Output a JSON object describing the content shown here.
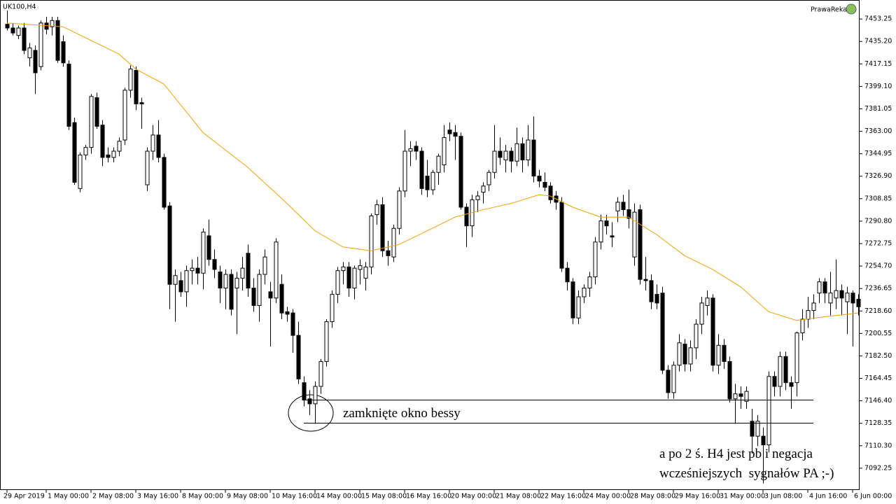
{
  "chart_data": {
    "type": "candlestick",
    "title": "UK100,H4",
    "brand": "PrawaReka",
    "ylim": [
      7074.75,
      7468.5
    ],
    "yticks": [
      {
        "value": 7453.25,
        "label": "7453.25"
      },
      {
        "value": 7435.2,
        "label": "7435.20"
      },
      {
        "value": 7417.15,
        "label": "7417.15"
      },
      {
        "value": 7399.1,
        "label": "7399.10"
      },
      {
        "value": 7381.05,
        "label": "7381.05"
      },
      {
        "value": 7363,
        "label": "7363.00"
      },
      {
        "value": 7344.95,
        "label": "7344.95"
      },
      {
        "value": 7326.9,
        "label": "7326.90"
      },
      {
        "value": 7308.85,
        "label": "7308.85"
      },
      {
        "value": 7290.8,
        "label": "7290.80"
      },
      {
        "value": 7272.75,
        "label": "7272.75"
      },
      {
        "value": 7254.7,
        "label": "7254.70"
      },
      {
        "value": 7236.65,
        "label": "7236.65"
      },
      {
        "value": 7218.6,
        "label": "7218.60"
      },
      {
        "value": 7200.55,
        "label": "7200.55"
      },
      {
        "value": 7182.5,
        "label": "7182.50"
      },
      {
        "value": 7164.45,
        "label": "7164.45"
      },
      {
        "value": 7146.4,
        "label": "7146.40"
      },
      {
        "value": 7128.35,
        "label": "7128.35"
      },
      {
        "value": 7110.3,
        "label": "7110.30"
      },
      {
        "value": 7092.25,
        "label": "7092.25"
      }
    ],
    "categories": [
      "29 Apr 2019",
      null,
      null,
      null,
      null,
      null,
      null,
      "1 May 00:00",
      null,
      null,
      null,
      null,
      null,
      null,
      null,
      "2 May 08:00",
      null,
      null,
      null,
      null,
      null,
      null,
      null,
      "3 May 16:00",
      null,
      null,
      null,
      null,
      null,
      null,
      null,
      "8 May 00:00",
      null,
      null,
      null,
      null,
      null,
      null,
      null,
      "9 May 08:00",
      null,
      null,
      null,
      null,
      null,
      null,
      null,
      "10 May 16:00",
      null,
      null,
      null,
      null,
      null,
      null,
      null,
      "14 May 00:00",
      null,
      null,
      null,
      null,
      null,
      null,
      null,
      "15 May 08:00",
      null,
      null,
      null,
      null,
      null,
      null,
      null,
      "16 May 16:00",
      null,
      null,
      null,
      null,
      null,
      null,
      null,
      "20 May 00:00",
      null,
      null,
      null,
      null,
      null,
      null,
      null,
      "21 May 08:00",
      null,
      null,
      null,
      null,
      null,
      null,
      null,
      "22 May 16:00",
      null,
      null,
      null,
      null,
      null,
      null,
      null,
      "24 May 00:00",
      null,
      null,
      null,
      null,
      null,
      null,
      null,
      "28 May 08:00",
      null,
      null,
      null,
      null,
      null,
      null,
      null,
      "29 May 16:00",
      null,
      null,
      null,
      null,
      null,
      null,
      null,
      "31 May 00:00",
      null,
      null,
      null,
      null,
      null,
      null,
      null,
      "3 Jun 08:00",
      null,
      null,
      null,
      null,
      null,
      null,
      null,
      "4 Jun 16:00",
      null,
      null,
      null,
      null,
      null,
      null,
      null,
      "6 Jun 00:00",
      null
    ],
    "ohlc": [
      [
        7449,
        7460,
        7444,
        7446
      ],
      [
        7446,
        7450,
        7440,
        7442
      ],
      [
        7440,
        7448,
        7437,
        7446
      ],
      [
        7446,
        7450,
        7425,
        7428
      ],
      [
        7422,
        7434,
        7415,
        7430
      ],
      [
        7428,
        7432,
        7393,
        7410
      ],
      [
        7415,
        7452,
        7412,
        7450
      ],
      [
        7450,
        7455,
        7441,
        7445
      ],
      [
        7447,
        7455,
        7440,
        7452
      ],
      [
        7452,
        7455,
        7418,
        7420
      ],
      [
        7435,
        7440,
        7415,
        7418
      ],
      [
        7417,
        7420,
        7364,
        7367
      ],
      [
        7370,
        7374,
        7320,
        7322
      ],
      [
        7317,
        7346,
        7314,
        7344
      ],
      [
        7344,
        7352,
        7340,
        7350
      ],
      [
        7350,
        7393,
        7345,
        7391
      ],
      [
        7390,
        7394,
        7365,
        7367
      ],
      [
        7368,
        7372,
        7335,
        7342
      ],
      [
        7344,
        7350,
        7338,
        7342
      ],
      [
        7342,
        7350,
        7338,
        7347
      ],
      [
        7347,
        7358,
        7343,
        7355
      ],
      [
        7356,
        7398,
        7352,
        7396
      ],
      [
        7396,
        7416,
        7390,
        7413
      ],
      [
        7412,
        7415,
        7380,
        7385
      ],
      [
        7386,
        7390,
        7365,
        7385
      ],
      [
        7320,
        7350,
        7315,
        7347
      ],
      [
        7347,
        7368,
        7340,
        7360
      ],
      [
        7360,
        7372,
        7338,
        7342
      ],
      [
        7342,
        7345,
        7300,
        7302
      ],
      [
        7303,
        7306,
        7220,
        7240
      ],
      [
        7240,
        7252,
        7210,
        7247
      ],
      [
        7243,
        7250,
        7230,
        7234
      ],
      [
        7234,
        7255,
        7222,
        7251
      ],
      [
        7251,
        7260,
        7240,
        7253
      ],
      [
        7253,
        7262,
        7240,
        7249
      ],
      [
        7249,
        7285,
        7236,
        7282
      ],
      [
        7279,
        7292,
        7255,
        7260
      ],
      [
        7260,
        7268,
        7245,
        7252
      ],
      [
        7250,
        7255,
        7225,
        7237
      ],
      [
        7237,
        7252,
        7220,
        7248
      ],
      [
        7248,
        7252,
        7215,
        7220
      ],
      [
        7237,
        7250,
        7200,
        7245
      ],
      [
        7245,
        7262,
        7235,
        7253
      ],
      [
        7265,
        7272,
        7230,
        7237
      ],
      [
        7237,
        7245,
        7218,
        7223
      ],
      [
        7223,
        7252,
        7210,
        7248
      ],
      [
        7248,
        7268,
        7240,
        7262
      ],
      [
        7234,
        7242,
        7190,
        7229
      ],
      [
        7229,
        7277,
        7225,
        7274
      ],
      [
        7240,
        7248,
        7212,
        7217
      ],
      [
        7218,
        7222,
        7210,
        7216
      ],
      [
        7217,
        7220,
        7185,
        7199
      ],
      [
        7199,
        7210,
        7160,
        7164
      ],
      [
        7161,
        7166,
        7142,
        7147
      ],
      [
        7148,
        7155,
        7135,
        7144
      ],
      [
        7144,
        7162,
        7128,
        7158
      ],
      [
        7158,
        7180,
        7152,
        7178
      ],
      [
        7178,
        7212,
        7174,
        7210
      ],
      [
        7210,
        7235,
        7205,
        7232
      ],
      [
        7232,
        7254,
        7225,
        7251
      ],
      [
        7251,
        7258,
        7240,
        7254
      ],
      [
        7254,
        7258,
        7230,
        7237
      ],
      [
        7237,
        7255,
        7228,
        7253
      ],
      [
        7252,
        7260,
        7240,
        7255
      ],
      [
        7245,
        7258,
        7235,
        7254
      ],
      [
        7254,
        7297,
        7248,
        7295
      ],
      [
        7296,
        7308,
        7288,
        7304
      ],
      [
        7304,
        7310,
        7262,
        7267
      ],
      [
        7267,
        7275,
        7255,
        7263
      ],
      [
        7262,
        7288,
        7258,
        7285
      ],
      [
        7285,
        7318,
        7280,
        7315
      ],
      [
        7315,
        7364,
        7310,
        7347
      ],
      [
        7347,
        7355,
        7335,
        7349
      ],
      [
        7351,
        7355,
        7340,
        7347
      ],
      [
        7347,
        7350,
        7312,
        7317
      ],
      [
        7327,
        7340,
        7310,
        7316
      ],
      [
        7316,
        7332,
        7312,
        7330
      ],
      [
        7330,
        7345,
        7320,
        7343
      ],
      [
        7336,
        7368,
        7330,
        7358
      ],
      [
        7364,
        7370,
        7355,
        7361
      ],
      [
        7362,
        7368,
        7340,
        7359
      ],
      [
        7359,
        7362,
        7300,
        7302
      ],
      [
        7302,
        7305,
        7270,
        7287
      ],
      [
        7287,
        7312,
        7278,
        7308
      ],
      [
        7308,
        7315,
        7298,
        7311
      ],
      [
        7314,
        7322,
        7305,
        7319
      ],
      [
        7320,
        7332,
        7315,
        7330
      ],
      [
        7330,
        7368,
        7325,
        7347
      ],
      [
        7347,
        7358,
        7336,
        7342
      ],
      [
        7340,
        7352,
        7330,
        7347
      ],
      [
        7347,
        7350,
        7330,
        7339
      ],
      [
        7339,
        7366,
        7335,
        7353
      ],
      [
        7353,
        7358,
        7330,
        7340
      ],
      [
        7340,
        7368,
        7335,
        7356
      ],
      [
        7356,
        7375,
        7322,
        7327
      ],
      [
        7327,
        7332,
        7318,
        7323
      ],
      [
        7322,
        7330,
        7315,
        7318
      ],
      [
        7319,
        7322,
        7305,
        7308
      ],
      [
        7311,
        7315,
        7300,
        7306
      ],
      [
        7306,
        7310,
        7250,
        7253
      ],
      [
        7253,
        7258,
        7235,
        7242
      ],
      [
        7242,
        7245,
        7208,
        7213
      ],
      [
        7213,
        7235,
        7208,
        7230
      ],
      [
        7230,
        7240,
        7225,
        7237
      ],
      [
        7237,
        7250,
        7230,
        7246
      ],
      [
        7246,
        7278,
        7240,
        7274
      ],
      [
        7274,
        7296,
        7268,
        7291
      ],
      [
        7291,
        7296,
        7280,
        7287
      ],
      [
        7279,
        7290,
        7270,
        7278
      ],
      [
        7299,
        7310,
        7290,
        7306
      ],
      [
        7306,
        7312,
        7295,
        7300
      ],
      [
        7300,
        7316,
        7285,
        7293
      ],
      [
        7262,
        7305,
        7255,
        7298
      ],
      [
        7300,
        7304,
        7240,
        7244
      ],
      [
        7244,
        7262,
        7235,
        7243
      ],
      [
        7243,
        7248,
        7220,
        7226
      ],
      [
        7232,
        7240,
        7220,
        7225
      ],
      [
        7233,
        7238,
        7168,
        7171
      ],
      [
        7171,
        7175,
        7148,
        7153
      ],
      [
        7153,
        7178,
        7148,
        7175
      ],
      [
        7175,
        7200,
        7170,
        7193
      ],
      [
        7192,
        7196,
        7170,
        7176
      ],
      [
        7176,
        7195,
        7170,
        7189
      ],
      [
        7189,
        7212,
        7180,
        7208
      ],
      [
        7208,
        7230,
        7200,
        7225
      ],
      [
        7223,
        7235,
        7215,
        7229
      ],
      [
        7229,
        7232,
        7170,
        7175
      ],
      [
        7175,
        7200,
        7168,
        7191
      ],
      [
        7191,
        7196,
        7172,
        7178
      ],
      [
        7178,
        7182,
        7145,
        7148
      ],
      [
        7148,
        7160,
        7128,
        7152
      ],
      [
        7152,
        7158,
        7140,
        7150
      ],
      [
        7146,
        7158,
        7140,
        7154
      ],
      [
        7130,
        7140,
        7104,
        7118
      ],
      [
        7118,
        7135,
        7110,
        7130
      ],
      [
        7118,
        7125,
        7080,
        7111
      ],
      [
        7111,
        7170,
        7105,
        7166
      ],
      [
        7166,
        7170,
        7150,
        7158
      ],
      [
        7158,
        7186,
        7150,
        7182
      ],
      [
        7182,
        7186,
        7155,
        7161
      ],
      [
        7161,
        7166,
        7140,
        7158
      ],
      [
        7161,
        7202,
        7150,
        7201
      ],
      [
        7201,
        7220,
        7195,
        7212
      ],
      [
        7212,
        7230,
        7205,
        7219
      ],
      [
        7219,
        7232,
        7212,
        7225
      ],
      [
        7233,
        7245,
        7225,
        7242
      ],
      [
        7242,
        7245,
        7225,
        7233
      ],
      [
        7225,
        7250,
        7215,
        7233
      ],
      [
        7229,
        7260,
        7220,
        7235
      ],
      [
        7235,
        7240,
        7215,
        7229
      ],
      [
        7226,
        7238,
        7200,
        7233
      ],
      [
        7233,
        7235,
        7190,
        7225
      ],
      [
        7228,
        7232,
        7215,
        7222
      ]
    ],
    "moving_average": {
      "color": "#f5a000",
      "x": [
        0,
        10,
        20,
        23,
        28,
        35,
        43,
        50,
        55,
        60,
        65,
        70,
        75,
        80,
        85,
        90,
        95,
        97,
        101,
        106,
        111,
        116,
        121,
        126,
        131,
        136,
        141,
        146,
        152
      ],
      "values": [
        7450,
        7447,
        7425,
        7413,
        7401,
        7362,
        7334,
        7305,
        7283,
        7270,
        7267,
        7272,
        7283,
        7294,
        7300,
        7305,
        7312,
        7311,
        7302,
        7294,
        7294,
        7280,
        7263,
        7252,
        7238,
        7218,
        7211,
        7214,
        7217
      ]
    },
    "levels": [
      {
        "value": 7147.3,
        "from": 53,
        "to": 144
      },
      {
        "value": 7128.7,
        "from": 53,
        "to": 144
      }
    ],
    "annotations": [
      "zamknięte okno bessy",
      "a po 2 ś. H4 jest pb i negacja",
      "wcześniejszych  sygnałów PA ;-)"
    ]
  }
}
